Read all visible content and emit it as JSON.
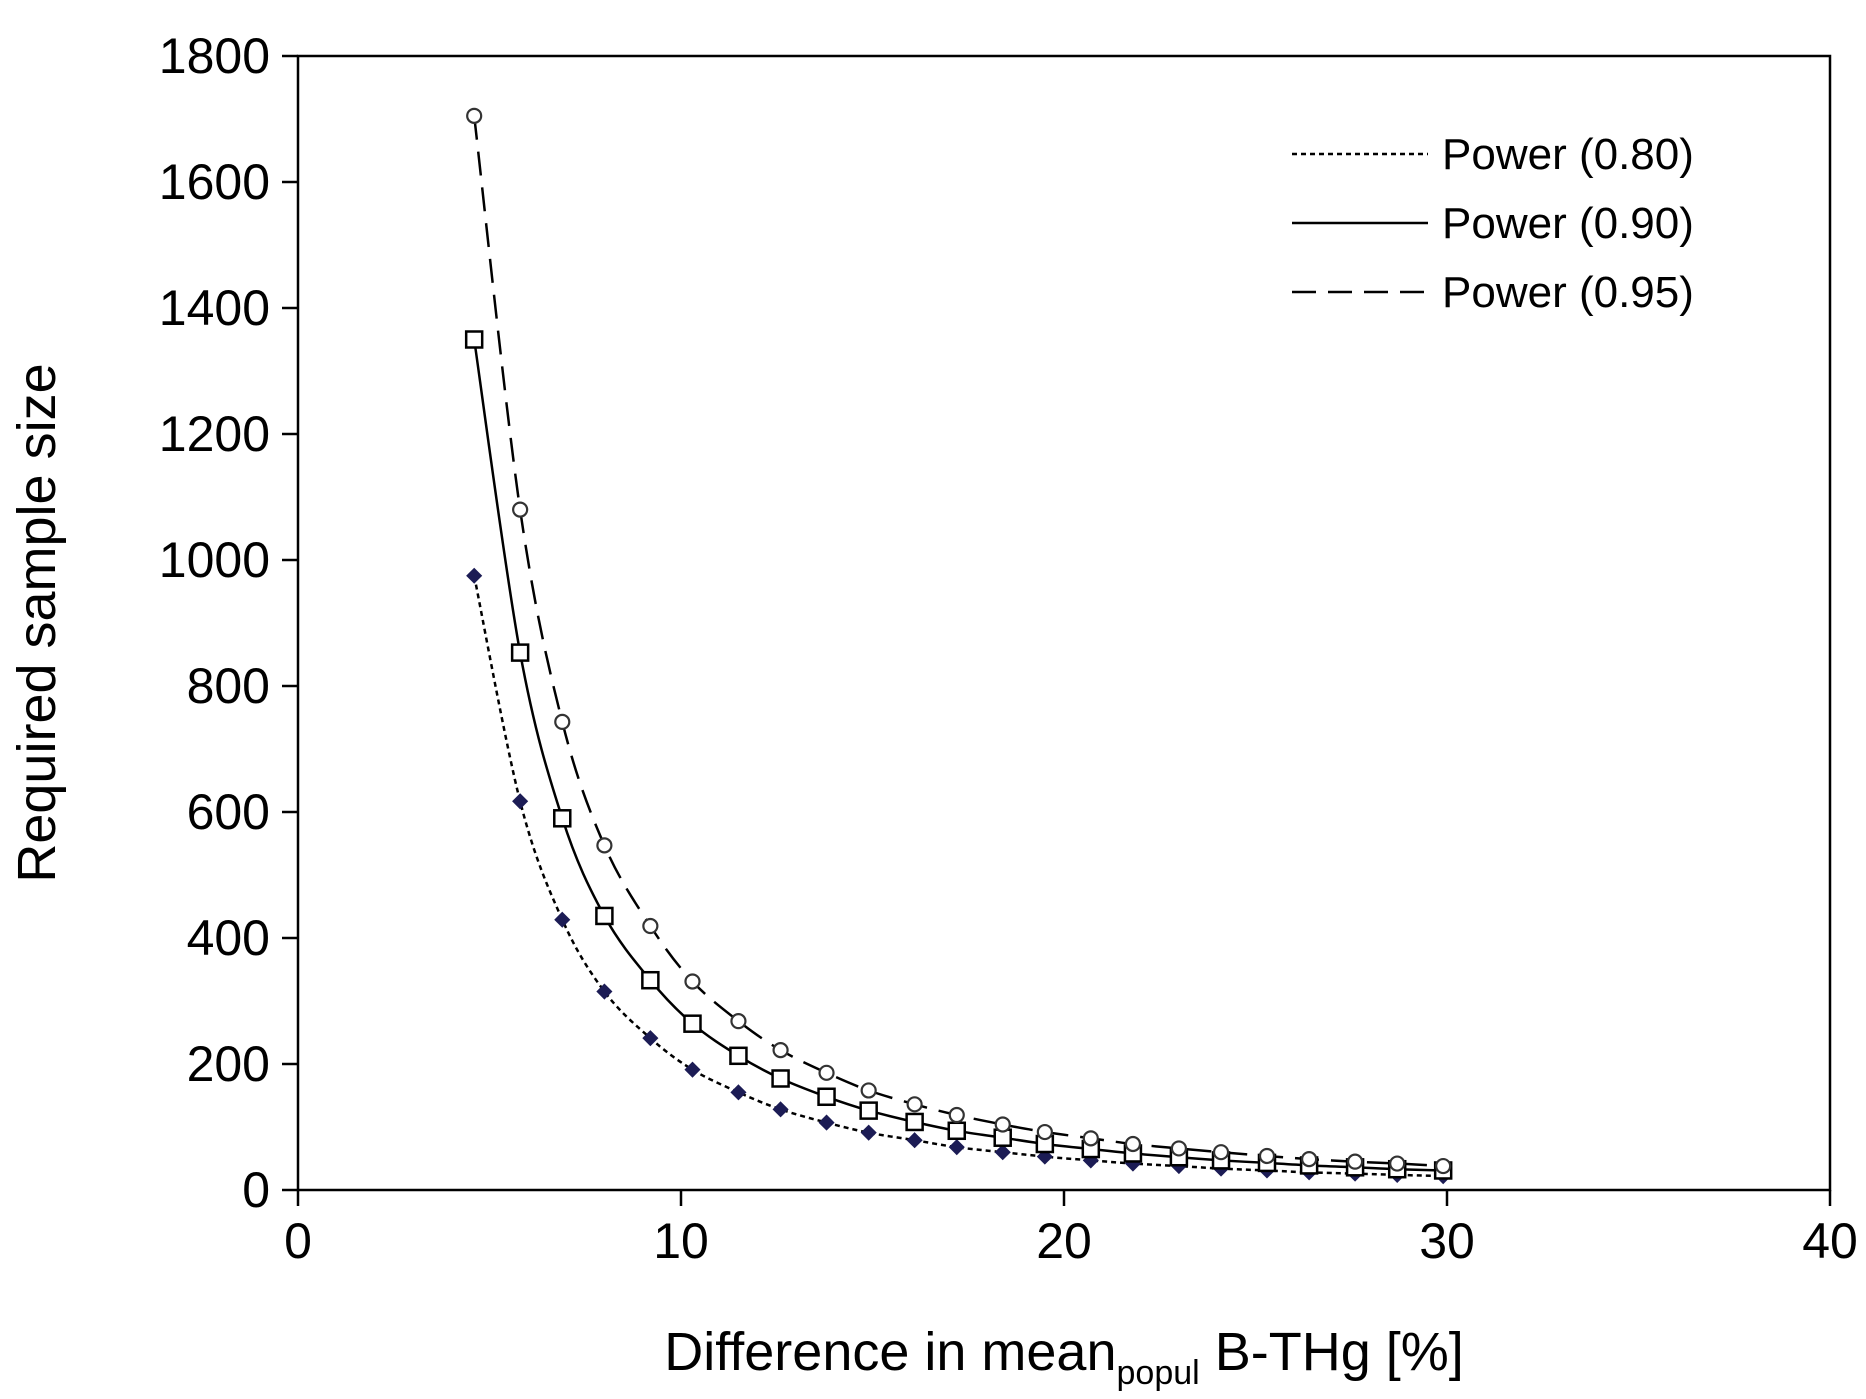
{
  "chart_data": {
    "type": "line",
    "title": "",
    "xlabel": {
      "main": "Difference in mean",
      "subscript": "popul",
      "suffix": " B-THg [%]"
    },
    "ylabel": "Required sample size",
    "xlim": [
      0,
      40
    ],
    "ylim": [
      0,
      1800
    ],
    "xticks": [
      0,
      10,
      20,
      30,
      40
    ],
    "yticks": [
      0,
      200,
      400,
      600,
      800,
      1000,
      1200,
      1400,
      1600,
      1800
    ],
    "grid": false,
    "legend_position": "top-right",
    "x": [
      4.6,
      5.8,
      6.9,
      8.0,
      9.2,
      10.3,
      11.5,
      12.6,
      13.8,
      14.9,
      16.1,
      17.2,
      18.4,
      19.5,
      20.7,
      21.8,
      23.0,
      24.1,
      25.3,
      26.4,
      27.6,
      28.7,
      29.9
    ],
    "series": [
      {
        "name": "Power (0.80)",
        "line_style": "dotted",
        "marker": "diamond",
        "marker_color": "#1c1c55",
        "values": [
          975,
          617,
          429,
          315,
          241,
          191,
          155,
          128,
          107,
          91,
          79,
          68,
          60,
          53,
          47,
          42,
          38,
          34,
          31,
          28,
          26,
          24,
          22
        ]
      },
      {
        "name": "Power (0.90)",
        "line_style": "solid",
        "marker": "square",
        "marker_color": "#000000",
        "values": [
          1350,
          853,
          590,
          435,
          333,
          264,
          213,
          177,
          148,
          126,
          108,
          94,
          83,
          73,
          65,
          58,
          52,
          47,
          43,
          39,
          36,
          33,
          31
        ]
      },
      {
        "name": "Power (0.95)",
        "line_style": "dashed",
        "marker": "circle",
        "marker_color": "#333333",
        "values": [
          1705,
          1080,
          743,
          547,
          419,
          331,
          268,
          222,
          186,
          158,
          136,
          119,
          104,
          92,
          82,
          73,
          66,
          60,
          54,
          49,
          45,
          42,
          38
        ]
      }
    ]
  }
}
